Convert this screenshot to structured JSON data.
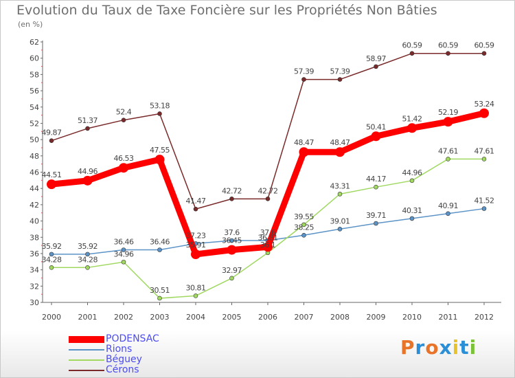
{
  "title": "Evolution du Taux de Taxe Foncière sur les Propriétés Non Bâties",
  "subtitle": "(en %)",
  "logo": {
    "text": "Proxiti",
    "colors": [
      "#e8742a",
      "#2a8fd6",
      "#e8742a",
      "#2a8fd6",
      "#e8c22a",
      "#2a8fd6",
      "#7ac23a"
    ]
  },
  "chart_data": {
    "type": "line",
    "x": [
      "2000",
      "2001",
      "2002",
      "2003",
      "2004",
      "2005",
      "2006",
      "2007",
      "2008",
      "2009",
      "2010",
      "2011",
      "2012"
    ],
    "ylim": [
      30,
      62
    ],
    "yticks": [
      "30",
      "32",
      "34",
      "36",
      "38",
      "40",
      "42",
      "44",
      "46",
      "48",
      "50",
      "52",
      "54",
      "56",
      "58",
      "60",
      "62"
    ],
    "grid": false,
    "legend_position": "bottom-left",
    "series": [
      {
        "name": "PODENSAC",
        "color": "#ff0000",
        "values": [
          44.51,
          44.96,
          46.53,
          47.55,
          35.91,
          36.45,
          36.81,
          48.47,
          48.47,
          50.41,
          51.42,
          52.19,
          53.24
        ],
        "labels": [
          "44.51",
          "44.96",
          "46.53",
          "47.55",
          "35.91",
          "36.45",
          "36.81",
          "48.47",
          "48.47",
          "50.41",
          "51.42",
          "52.19",
          "53.24"
        ]
      },
      {
        "name": "Rions",
        "color": "#5b93c7",
        "values": [
          35.92,
          35.92,
          36.46,
          36.46,
          37.23,
          37.6,
          37.6,
          38.25,
          39.01,
          39.71,
          40.31,
          40.91,
          41.52
        ],
        "labels": [
          "35.92",
          "35.92",
          "36.46",
          "36.46",
          "37.23",
          "37.6",
          "37.6",
          "38.25",
          "39.01",
          "39.71",
          "40.31",
          "40.91",
          "41.52"
        ]
      },
      {
        "name": "Béguey",
        "color": "#a0d860",
        "values": [
          34.28,
          34.28,
          34.96,
          30.51,
          30.81,
          32.97,
          36.1,
          39.55,
          43.31,
          44.17,
          44.96,
          47.61,
          47.61
        ],
        "labels": [
          "34.28",
          "34.28",
          "34.96",
          "30.51",
          "30.81",
          "32.97",
          "36.1",
          "39.55",
          "43.31",
          "44.17",
          "44.96",
          "47.61",
          "47.61"
        ]
      },
      {
        "name": "Cérons",
        "color": "#7a2a2a",
        "values": [
          49.87,
          51.37,
          52.4,
          53.18,
          41.47,
          42.72,
          42.72,
          57.39,
          57.39,
          58.97,
          60.59,
          60.59,
          60.59
        ],
        "labels": [
          "49.87",
          "51.37",
          "52.4",
          "53.18",
          "41.47",
          "42.72",
          "42.72",
          "57.39",
          "57.39",
          "58.97",
          "60.59",
          "60.59",
          "60.59"
        ]
      }
    ]
  }
}
